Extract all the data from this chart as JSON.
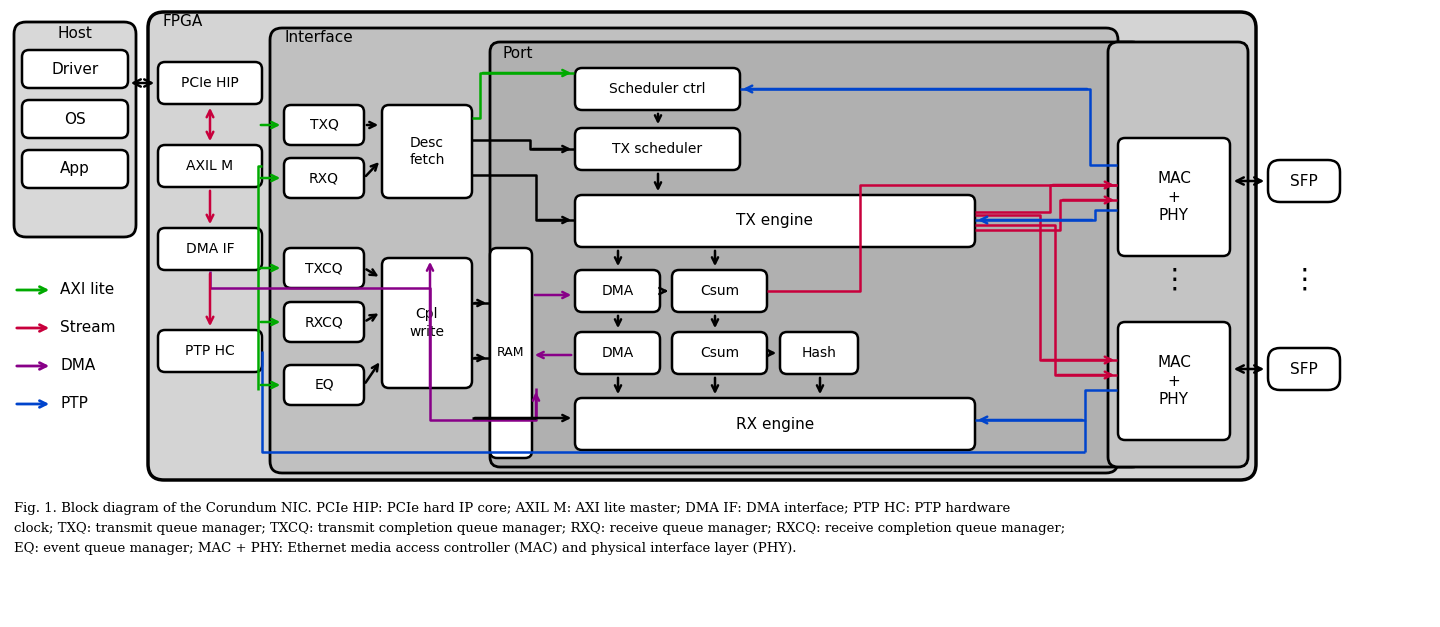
{
  "bg_color": "#ffffff",
  "fpga_fill": "#d4d4d4",
  "iface_fill": "#c0c0c0",
  "port_fill": "#b0b0b0",
  "mac_fill": "#c4c4c4",
  "box_fill": "#ffffff",
  "arrow_black": "#000000",
  "arrow_green": "#00aa00",
  "arrow_red": "#c8003c",
  "arrow_purple": "#880088",
  "arrow_blue": "#0044cc",
  "caption_line1": "Fig. 1. Block diagram of the Corundum NIC. PCIe HIP: PCIe hard IP core; AXIL M: AXI lite master; DMA IF: DMA interface; PTP HC: PTP hardware",
  "caption_line2": "clock; TXQ: transmit queue manager; TXCQ: transmit completion queue manager; RXQ: receive queue manager; RXCQ: receive completion queue manager;",
  "caption_line3": "EQ: event queue manager; MAC + PHY: Ethernet media access controller (MAC) and physical interface layer (PHY).",
  "legend": [
    {
      "color": "#00aa00",
      "label": "AXI lite"
    },
    {
      "color": "#c8003c",
      "label": "Stream"
    },
    {
      "color": "#880088",
      "label": "DMA"
    },
    {
      "color": "#0044cc",
      "label": "PTP"
    }
  ]
}
